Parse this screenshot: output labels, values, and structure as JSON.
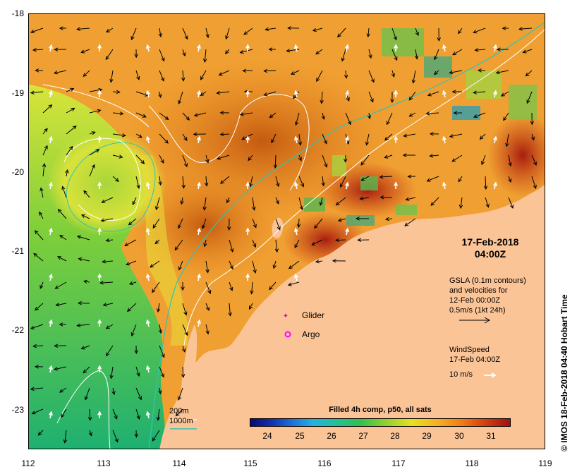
{
  "map": {
    "y_ticks": [
      "-18",
      "-19",
      "-20",
      "-21",
      "-22",
      "-23"
    ],
    "x_ticks": [
      "112",
      "113",
      "114",
      "115",
      "116",
      "117",
      "118",
      "119"
    ],
    "lat_range": [
      -18,
      -23.5
    ],
    "lon_range": [
      112,
      119
    ]
  },
  "overlay": {
    "date": "17-Feb-2018",
    "time": "04:00Z",
    "glider_label": "Glider",
    "argo_label": "Argo",
    "gsla_line1": "GSLA (0.1m contours)",
    "gsla_line2": "and velocities for",
    "gsla_line3": "12-Feb 00:00Z",
    "gsla_line4": "0.5m/s (1kt 24h)",
    "wind_line1": "WindSpeed",
    "wind_line2": "17-Feb 04:00Z",
    "wind_scale": "10 m/s",
    "depth_200": "200m",
    "depth_1000": "1000m"
  },
  "colorbar": {
    "title": "Filled 4h comp, p50, all sats",
    "labels": [
      "24",
      "25",
      "26",
      "27",
      "28",
      "29",
      "30",
      "31"
    ]
  },
  "side_text": "© IMOS 18-Feb-2018 04:40 Hobart Time",
  "colors": {
    "land": "#fbc497",
    "glider": "#e000e0",
    "argo": "#ff00ff",
    "contour_200": "#ffffff",
    "contour_1000": "#2ec4b6"
  }
}
